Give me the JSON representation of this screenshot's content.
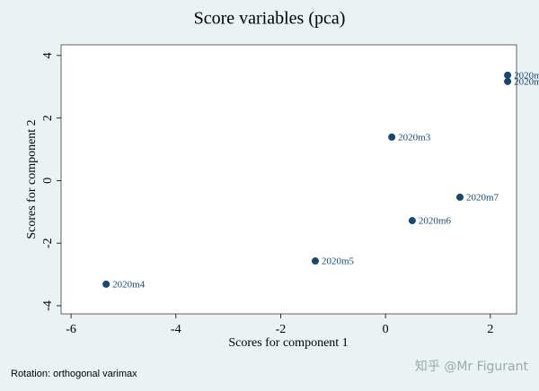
{
  "chart_data": {
    "type": "scatter",
    "title": "Score variables (pca)",
    "xlabel": "Scores for component 1",
    "ylabel": "Scores for component 2",
    "note": "Rotation: orthogonal varimax",
    "x": [
      2.33,
      2.33,
      0.12,
      1.42,
      0.51,
      -1.34,
      -5.33
    ],
    "values": [
      3.37,
      3.17,
      1.39,
      -0.53,
      -1.28,
      -2.57,
      -3.31
    ],
    "labels": [
      "2020m",
      "2020m",
      "2020m3",
      "2020m7",
      "2020m6",
      "2020m5",
      "2020m4"
    ],
    "color": "#1a476f",
    "xlim": [
      -6.19,
      2.5
    ],
    "ylim": [
      -4.26,
      4.34
    ],
    "xticks": [
      -6,
      -4,
      -2,
      0,
      2
    ],
    "yticks": [
      -4,
      -2,
      0,
      2,
      4
    ]
  },
  "watermark": "知乎 @Mr Figurant"
}
